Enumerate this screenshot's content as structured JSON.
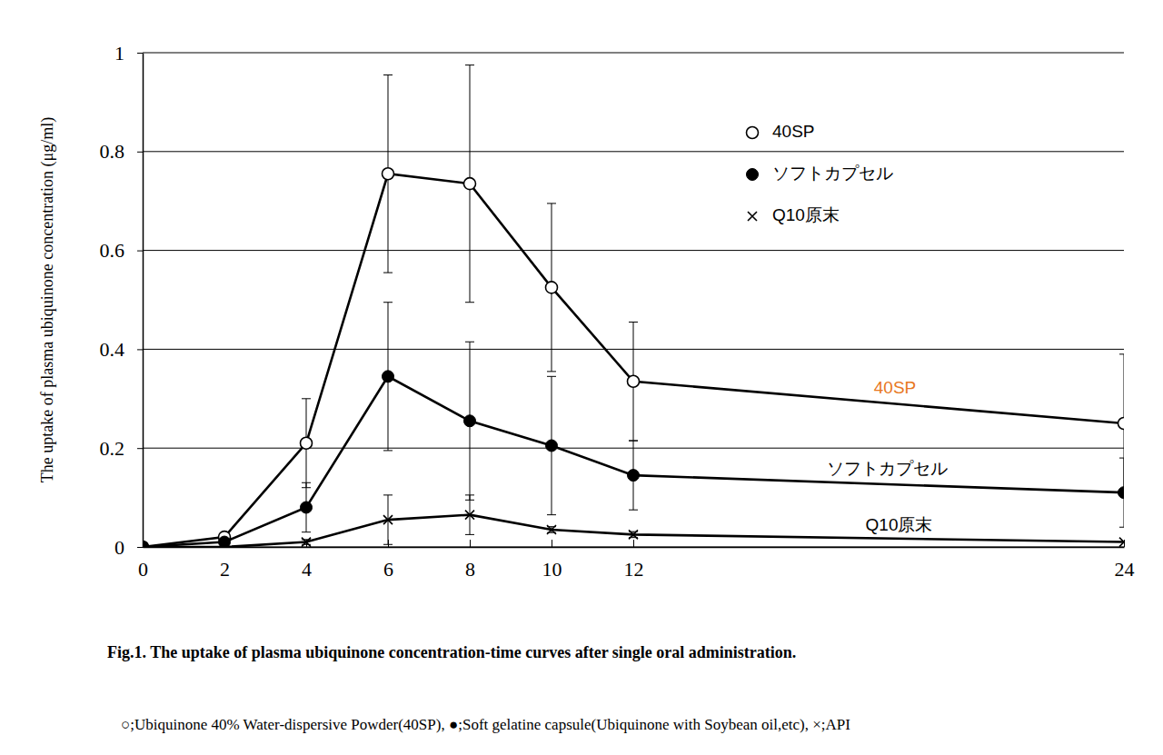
{
  "chart_data": {
    "type": "line",
    "title": "Fig.1. The uptake of plasma ubiquinone concentration-time curves after single oral administration.",
    "subtitle": "○;Ubiquinone 40% Water-dispersive Powder(40SP), ●;Soft gelatine capsule(Ubiquinone with Soybean oil,etc), ×;API",
    "y_label": "The uptake of plasma ubiquinone concentration (μg/ml)",
    "x": [
      0,
      2,
      4,
      6,
      8,
      10,
      12,
      24
    ],
    "xlim": [
      0,
      24
    ],
    "xticks": [
      0,
      2,
      4,
      6,
      8,
      10,
      12,
      24
    ],
    "ylim": [
      0,
      1
    ],
    "yticks": [
      0,
      0.2,
      0.4,
      0.6,
      0.8,
      1
    ],
    "grid": true,
    "legend": "upper right",
    "series": [
      {
        "name": "40SP",
        "color": "#000000",
        "marker": "circle-open",
        "line_style": "solid",
        "values": [
          0,
          0.02,
          0.21,
          0.755,
          0.735,
          0.525,
          0.335,
          0.25
        ],
        "errors": [
          0,
          0,
          0.09,
          0.2,
          0.24,
          0.17,
          0.12,
          0.14
        ]
      },
      {
        "name": "ソフトカプセル",
        "color": "#000000",
        "marker": "circle",
        "line_style": "solid",
        "values": [
          0,
          0.01,
          0.08,
          0.345,
          0.255,
          0.205,
          0.145,
          0.11
        ],
        "errors": [
          0,
          0,
          0.05,
          0.15,
          0.16,
          0.14,
          0.07,
          0.07
        ]
      },
      {
        "name": "Q10原末",
        "color": "#000000",
        "marker": "x",
        "line_style": "solid",
        "values": [
          0,
          0,
          0.01,
          0.055,
          0.065,
          0.035,
          0.025,
          0.01
        ],
        "errors": [
          0,
          0,
          0.005,
          0.05,
          0.04,
          0.006,
          0.006,
          0
        ]
      }
    ],
    "annotations": [
      {
        "text": "40SP",
        "x": 18.4,
        "y": 0.32,
        "color": "#e87722"
      },
      {
        "text": "ソフトカプセル",
        "x": 18.2,
        "y": 0.156,
        "color": "#000000"
      },
      {
        "text": "Q10原末",
        "x": 18.5,
        "y": 0.043,
        "color": "#000000"
      }
    ]
  }
}
